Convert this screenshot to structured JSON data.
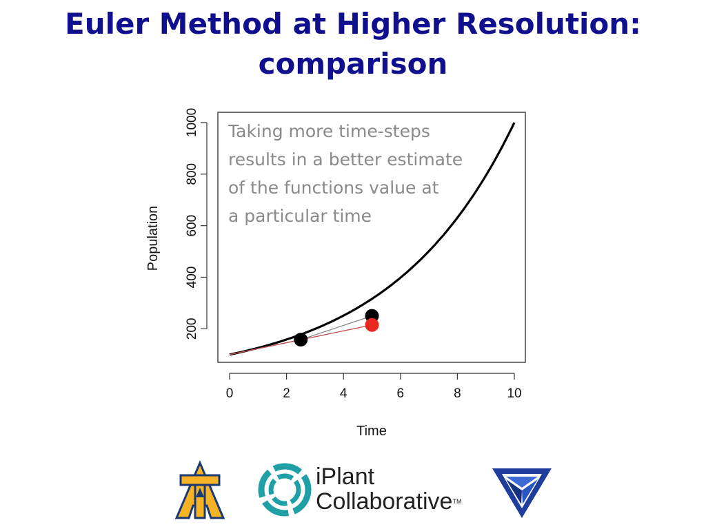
{
  "slide": {
    "title_line1": "Euler Method at Higher Resolution:",
    "title_line2": "comparison",
    "title_color": "#10108f"
  },
  "chart_data": {
    "type": "line",
    "xlabel": "Time",
    "ylabel": "Population",
    "xlim": [
      0,
      10
    ],
    "ylim": [
      70,
      1040
    ],
    "x_ticks": [
      0,
      2,
      4,
      6,
      8,
      10
    ],
    "y_ticks": [
      200,
      400,
      600,
      800,
      1000
    ],
    "grid": false,
    "legend": "none",
    "series": [
      {
        "color": "#000000",
        "kind": "curve",
        "x": [
          0,
          1,
          2,
          3,
          4,
          5,
          6,
          7,
          8,
          9,
          10
        ],
        "y": [
          100,
          126,
          158,
          200,
          251,
          316,
          398,
          501,
          631,
          794,
          1000
        ]
      },
      {
        "color": "#888888",
        "kind": "euler-steps",
        "x": [
          0,
          2.5,
          5
        ],
        "y": [
          100,
          158,
          250
        ]
      },
      {
        "color": "#c05050",
        "kind": "euler-step",
        "x": [
          0,
          5
        ],
        "y": [
          100,
          215
        ]
      }
    ],
    "points": [
      {
        "x": 2.5,
        "y": 158,
        "color": "#000000"
      },
      {
        "x": 5,
        "y": 250,
        "color": "#000000"
      },
      {
        "x": 5,
        "y": 215,
        "color": "#e8281e"
      }
    ],
    "annotation": [
      "Taking more time-steps",
      "results in a better estimate",
      "of the functions value at",
      "a particular time"
    ]
  },
  "logos": {
    "iplant_line1": "iPlant",
    "iplant_line2": "Collaborative",
    "iplant_tm": "TM",
    "aggie_letters": "AT",
    "aggie_color": "#f5b325",
    "aggie_outline": "#1c3a72",
    "triangle_color": "#1f3d9b",
    "iplant_ring_color": "#1fa0a6"
  }
}
